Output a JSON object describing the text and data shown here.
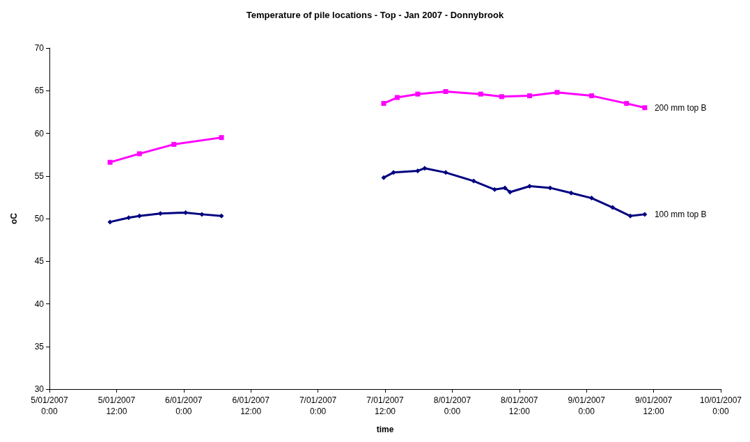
{
  "chart_data": {
    "type": "line",
    "title": "Temperature of pile locations - Top - Jan 2007 - Donnybrook",
    "xlabel": "time",
    "ylabel": "oC",
    "xlim": [
      "2007-01-05T00:00",
      "2007-01-10T00:00"
    ],
    "xticks": [
      {
        "value": "2007-01-05T00:00",
        "label": "5/01/2007\n0:00"
      },
      {
        "value": "2007-01-05T12:00",
        "label": "5/01/2007\n12:00"
      },
      {
        "value": "2007-01-06T00:00",
        "label": "6/01/2007\n0:00"
      },
      {
        "value": "2007-01-06T12:00",
        "label": "6/01/2007\n12:00"
      },
      {
        "value": "2007-01-07T00:00",
        "label": "7/01/2007\n0:00"
      },
      {
        "value": "2007-01-07T12:00",
        "label": "7/01/2007\n12:00"
      },
      {
        "value": "2007-01-08T00:00",
        "label": "8/01/2007\n0:00"
      },
      {
        "value": "2007-01-08T12:00",
        "label": "8/01/2007\n12:00"
      },
      {
        "value": "2007-01-09T00:00",
        "label": "9/01/2007\n0:00"
      },
      {
        "value": "2007-01-09T12:00",
        "label": "9/01/2007\n12:00"
      },
      {
        "value": "2007-01-10T00:00",
        "label": "10/01/2007\n0:00"
      }
    ],
    "ylim": [
      30,
      70
    ],
    "yticks": [
      30,
      35,
      40,
      45,
      50,
      55,
      60,
      65,
      70
    ],
    "grid": false,
    "legend": false,
    "series": [
      {
        "name": "100 mm top B",
        "color": "#000080",
        "marker": "diamond",
        "x": [
          "2007-01-05T10:50",
          "2007-01-05T14:10",
          "2007-01-05T16:05",
          "2007-01-05T19:50",
          "2007-01-06T00:20",
          "2007-01-06T03:15",
          "2007-01-06T06:45",
          "2007-01-06T18:00",
          "2007-01-07T11:45",
          "2007-01-07T13:30",
          "2007-01-07T17:50",
          "2007-01-07T19:05",
          "2007-01-07T22:50",
          "2007-01-08T03:50",
          "2007-01-08T07:35",
          "2007-01-08T09:25",
          "2007-01-08T10:20",
          "2007-01-08T13:50",
          "2007-01-08T17:30",
          "2007-01-08T21:15",
          "2007-01-09T00:55",
          "2007-01-09T04:40",
          "2007-01-09T07:50",
          "2007-01-09T10:25"
        ],
        "values": [
          49.6,
          50.1,
          50.3,
          50.6,
          50.7,
          50.5,
          50.3,
          null,
          54.8,
          55.4,
          55.6,
          55.9,
          55.4,
          54.4,
          53.4,
          53.6,
          53.1,
          53.8,
          53.6,
          53.0,
          52.4,
          51.3,
          50.3,
          50.5
        ]
      },
      {
        "name": "200 mm top B",
        "color": "#ff00ff",
        "marker": "square",
        "x": [
          "2007-01-05T10:50",
          "2007-01-05T16:05",
          "2007-01-05T22:15",
          "2007-01-06T06:45",
          "2007-01-06T18:00",
          "2007-01-07T11:45",
          "2007-01-07T14:10",
          "2007-01-07T17:50",
          "2007-01-07T22:50",
          "2007-01-08T05:05",
          "2007-01-08T08:50",
          "2007-01-08T13:50",
          "2007-01-08T18:45",
          "2007-01-09T00:55",
          "2007-01-09T07:10",
          "2007-01-09T10:25"
        ],
        "values": [
          56.6,
          57.6,
          58.7,
          59.5,
          null,
          63.5,
          64.2,
          64.6,
          64.9,
          64.6,
          64.3,
          64.4,
          64.8,
          64.4,
          63.5,
          63.0
        ]
      }
    ]
  }
}
